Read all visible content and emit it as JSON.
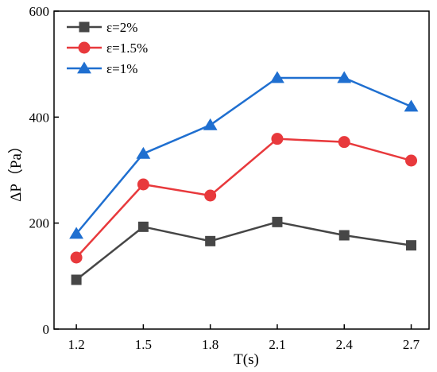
{
  "chart_data": {
    "type": "line",
    "xlabel": "T(s)",
    "ylabel": "ΔP（Pa）",
    "x": [
      1.2,
      1.5,
      1.8,
      2.1,
      2.4,
      2.7
    ],
    "x_tick_labels": [
      "1.2",
      "1.5",
      "1.8",
      "2.1",
      "2.4",
      "2.7"
    ],
    "xlim": [
      1.1,
      2.78
    ],
    "ylim": [
      0,
      600
    ],
    "y_ticks": [
      0,
      200,
      400,
      600
    ],
    "y_tick_labels": [
      "0",
      "200",
      "400",
      "600"
    ],
    "grid": false,
    "legend_position": "top-left",
    "series": [
      {
        "name": "ε=2%",
        "color": "#464646",
        "marker": "square",
        "values": [
          93,
          193,
          166,
          202,
          177,
          158
        ]
      },
      {
        "name": "ε=1.5%",
        "color": "#e8393c",
        "marker": "circle",
        "values": [
          135,
          273,
          252,
          359,
          353,
          318
        ]
      },
      {
        "name": "ε=1%",
        "color": "#1f6fd0",
        "marker": "triangle",
        "values": [
          180,
          331,
          385,
          474,
          474,
          420
        ]
      }
    ]
  }
}
